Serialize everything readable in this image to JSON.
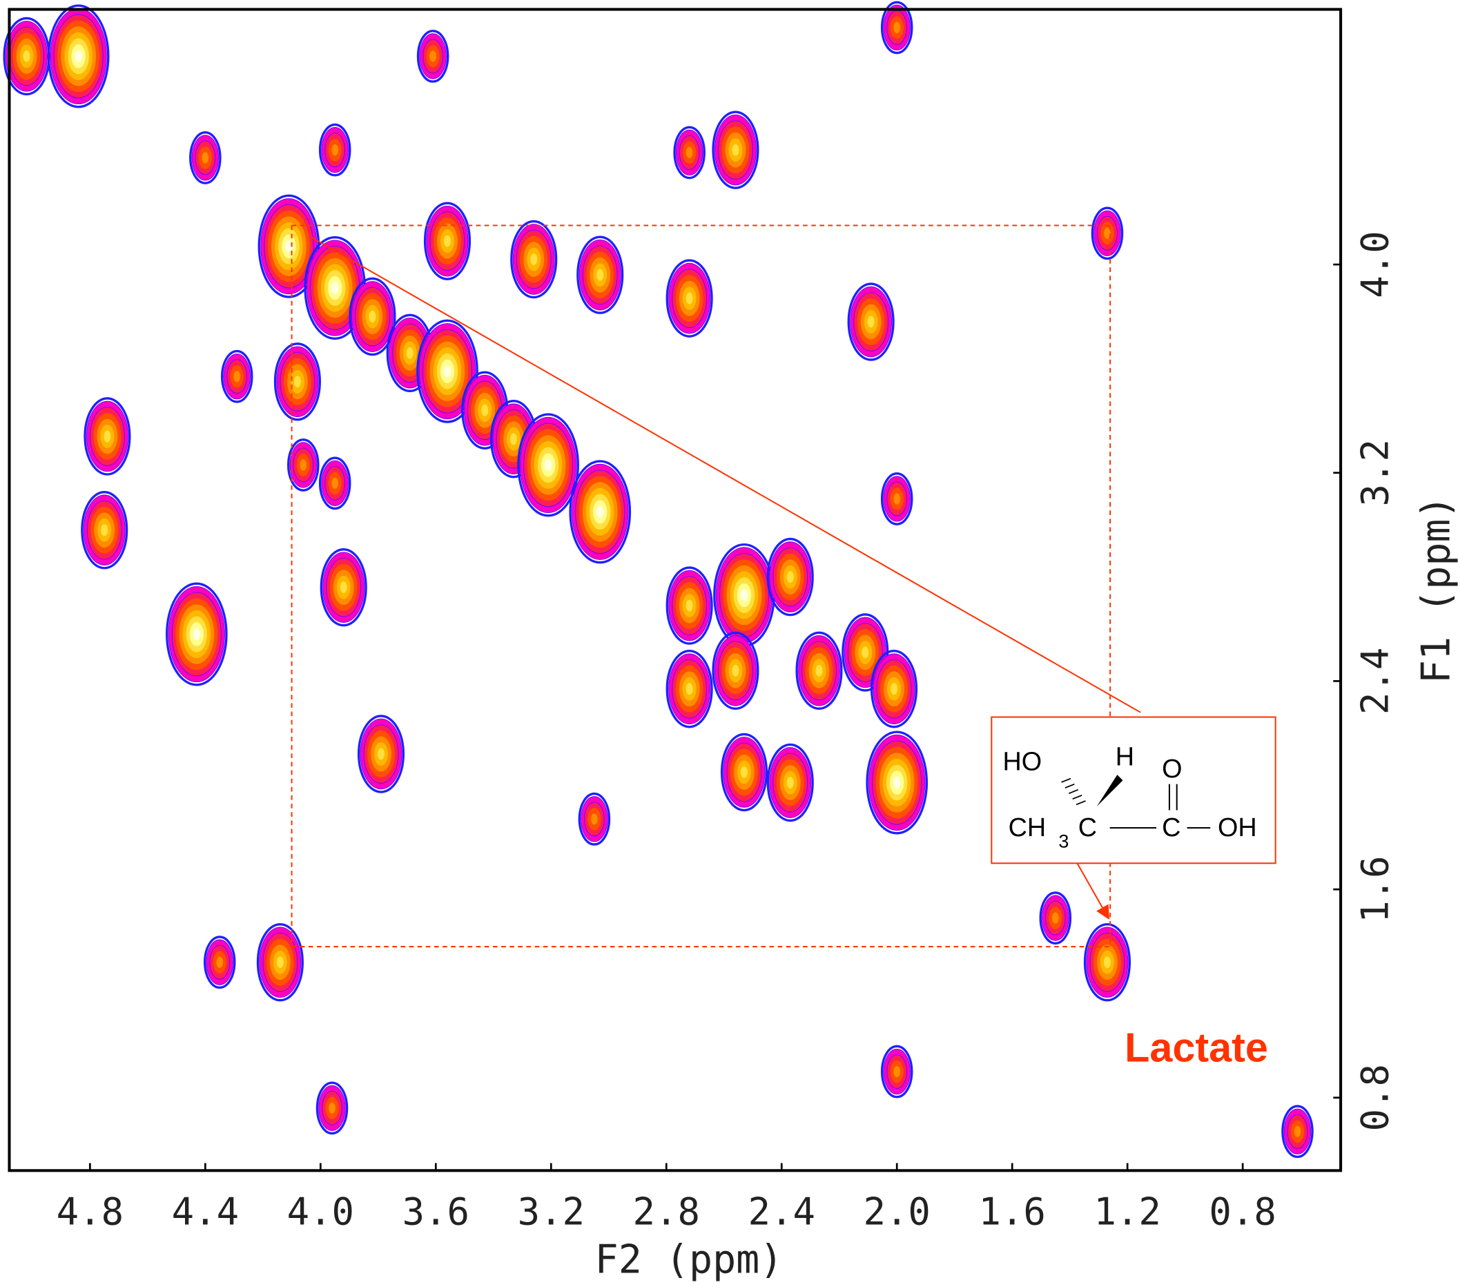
{
  "chart_data": {
    "type": "contour",
    "xlabel": "F2 (ppm)",
    "ylabel": "F1 (ppm)",
    "xlim": [
      5.08,
      0.46
    ],
    "ylim": [
      0.52,
      4.98
    ],
    "xticks": [
      4.8,
      4.4,
      {
        "value": 4,
        "label": "4.0"
      },
      3.6,
      3.2,
      2.8,
      2.4,
      {
        "value": 2,
        "label": "2.0"
      },
      1.6,
      1.2,
      0.8
    ],
    "yticks": [
      {
        "value": 4,
        "label": "4.0"
      },
      3.2,
      2.4,
      1.6,
      0.8
    ],
    "x": [
      4.84,
      5.02,
      4.11,
      3.95,
      3.82,
      3.69,
      3.56,
      3.56,
      3.43,
      3.33,
      3.21,
      3.03,
      3.26,
      3.03,
      4.08,
      4.74,
      4.75,
      4.43,
      3.92,
      3.79,
      2.72,
      2.56,
      2.72,
      2.09,
      2.72,
      2.53,
      2.37,
      2.72,
      2.56,
      2.27,
      2.11,
      2.01,
      2.0,
      2.53,
      2.37,
      4.14,
      1.27,
      1.45,
      4.35,
      0.61,
      2.0,
      2.0,
      3.95,
      4.4,
      3.96,
      2.0,
      3.61,
      4.06,
      3.95,
      3.05,
      1.27,
      4.29
    ],
    "values": [
      4.8,
      4.8,
      4.07,
      3.91,
      3.8,
      3.66,
      3.59,
      4.09,
      3.44,
      3.33,
      3.23,
      3.05,
      4.02,
      3.96,
      3.55,
      3.34,
      2.98,
      2.58,
      2.76,
      2.12,
      3.87,
      4.44,
      4.43,
      3.78,
      2.69,
      2.73,
      2.8,
      2.37,
      2.44,
      2.44,
      2.51,
      2.37,
      2.01,
      2.05,
      2.01,
      1.32,
      1.32,
      1.49,
      1.32,
      0.67,
      3.1,
      4.91,
      4.44,
      4.41,
      0.76,
      0.9,
      4.8,
      3.23,
      3.16,
      1.87,
      4.12,
      3.57
    ],
    "sizes": [
      3,
      2,
      3,
      3,
      2,
      2,
      3,
      2,
      2,
      2,
      3,
      3,
      2,
      2,
      2,
      2,
      2,
      3,
      2,
      2,
      2,
      2,
      1,
      2,
      2,
      3,
      2,
      2,
      2,
      2,
      2,
      2,
      3,
      2,
      2,
      2,
      2,
      1,
      1,
      1,
      1,
      1,
      1,
      1,
      1,
      1,
      1,
      1,
      1,
      1,
      1,
      1
    ],
    "annotations": {
      "label": "Lactate",
      "box": {
        "x": [
          4.1,
          1.26
        ],
        "y": [
          4.15,
          1.38
        ]
      },
      "structure": [
        "HO",
        "H",
        "O",
        "CH",
        "3",
        "C",
        "C",
        "OH"
      ]
    }
  }
}
